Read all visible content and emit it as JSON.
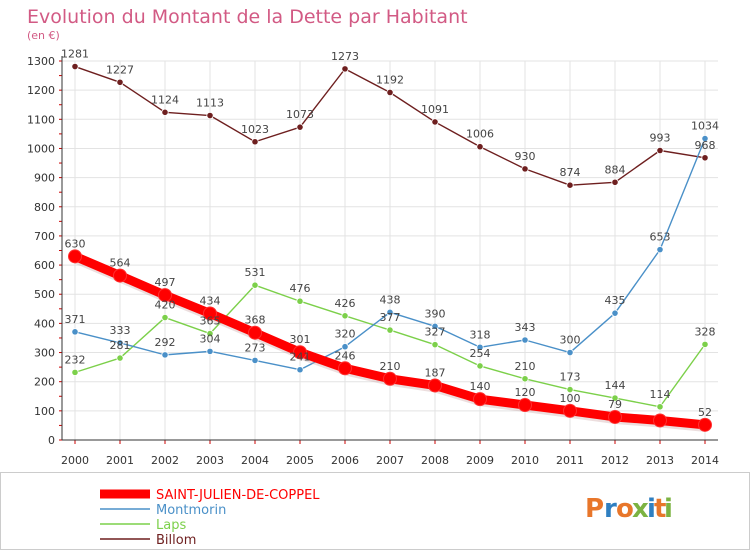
{
  "chart_data": {
    "type": "line",
    "title": "Evolution du Montant de la Dette par Habitant",
    "subtitle": "(en €)",
    "x": [
      "2000",
      "2001",
      "2002",
      "2003",
      "2004",
      "2005",
      "2006",
      "2007",
      "2008",
      "2009",
      "2010",
      "2011",
      "2012",
      "2013",
      "2014"
    ],
    "ylim": [
      0,
      1300
    ],
    "yticks": [
      0,
      100,
      200,
      300,
      400,
      500,
      600,
      700,
      800,
      900,
      1000,
      1100,
      1200,
      1300
    ],
    "grid": true,
    "legend_position": "bottom-left",
    "series": [
      {
        "name": "SAINT-JULIEN-DE-COPPEL",
        "color": "#ff0000",
        "values": [
          630,
          564,
          497,
          434,
          368,
          301,
          246,
          210,
          187,
          140,
          120,
          100,
          79,
          67,
          52
        ],
        "labels": [
          "630",
          "564",
          "497",
          "434",
          "368",
          "301",
          "246",
          "210",
          "187",
          "140",
          "120",
          "100",
          "79",
          "",
          "52"
        ]
      },
      {
        "name": "Montmorin",
        "color": "#4a90c8",
        "values": [
          371,
          333,
          292,
          304,
          273,
          241,
          320,
          438,
          390,
          318,
          343,
          300,
          435,
          653,
          1034
        ],
        "labels": [
          "371",
          "333",
          "292",
          "304",
          "273",
          "241",
          "320",
          "438",
          "390",
          "318",
          "343",
          "300",
          "435",
          "653",
          "1034"
        ]
      },
      {
        "name": "Laps",
        "color": "#7cd04a",
        "values": [
          232,
          281,
          420,
          365,
          531,
          476,
          426,
          377,
          327,
          254,
          210,
          173,
          144,
          114,
          328
        ],
        "labels": [
          "232",
          "281",
          "420",
          "365",
          "531",
          "476",
          "426",
          "377",
          "327",
          "254",
          "210",
          "173",
          "144",
          "114",
          "328"
        ]
      },
      {
        "name": "Billom",
        "color": "#6e1f1f",
        "values": [
          1281,
          1227,
          1124,
          1113,
          1023,
          1073,
          1273,
          1192,
          1091,
          1006,
          930,
          874,
          884,
          993,
          968
        ],
        "labels": [
          "1281",
          "1227",
          "1124",
          "1113",
          "1023",
          "1073",
          "1273",
          "1192",
          "1091",
          "1006",
          "930",
          "874",
          "884",
          "993",
          "968"
        ]
      }
    ]
  },
  "logo": {
    "text": "Proxiti",
    "colors": [
      "#e8762a",
      "#2f7fc1",
      "#e8762a",
      "#7cb342",
      "#2f7fc1",
      "#e8762a",
      "#7cb342"
    ]
  }
}
